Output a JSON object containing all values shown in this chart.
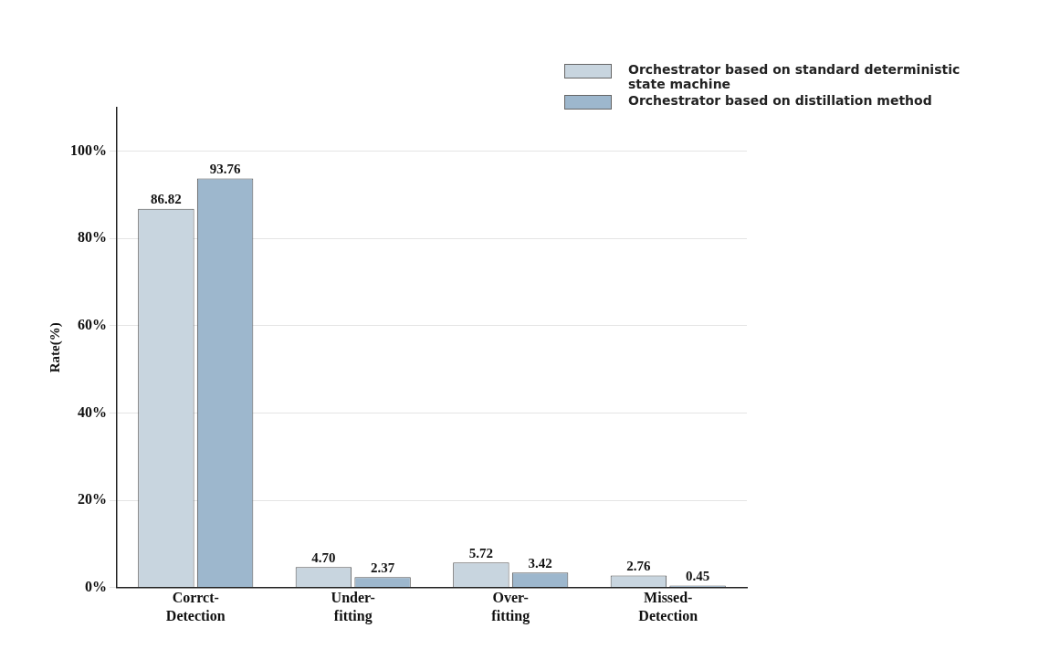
{
  "chart_data": {
    "type": "bar",
    "ylabel": "Rate(%)",
    "categories": [
      "Corrct-Detection",
      "Under-fitting",
      "Over-fitting",
      "Missed-Detection"
    ],
    "series": [
      {
        "name": "Orchestrator based on standard deterministic state machine",
        "color": "#c8d5df",
        "values": [
          86.82,
          4.7,
          5.72,
          2.76
        ],
        "value_labels": [
          "86.82",
          "4.70",
          "5.72",
          "2.76"
        ]
      },
      {
        "name": "Orchestrator based on distillation method",
        "color": "#9db7cd",
        "values": [
          93.76,
          2.37,
          3.42,
          0.45
        ],
        "value_labels": [
          "93.76",
          "2.37",
          "3.42",
          "0.45"
        ]
      }
    ],
    "ylim": [
      0,
      110
    ],
    "yticks": [
      {
        "value": 0,
        "label": "0%"
      },
      {
        "value": 20,
        "label": "20%"
      },
      {
        "value": 40,
        "label": "40%"
      },
      {
        "value": 60,
        "label": "60%"
      },
      {
        "value": 80,
        "label": "80%"
      },
      {
        "value": 100,
        "label": "100%"
      }
    ],
    "grid": "y",
    "legend": "top right"
  }
}
